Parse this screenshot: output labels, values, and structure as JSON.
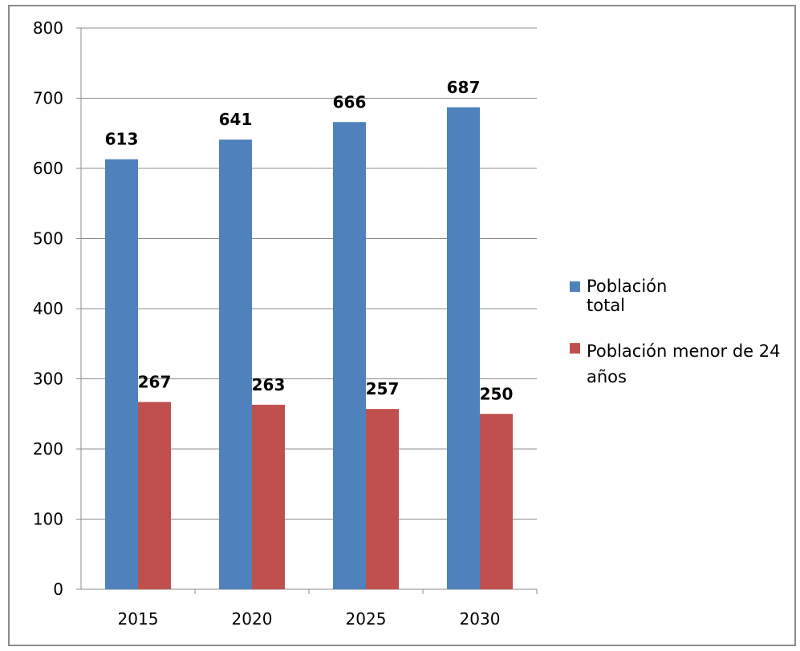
{
  "chart_data": {
    "type": "bar",
    "categories": [
      "2015",
      "2020",
      "2025",
      "2030"
    ],
    "series": [
      {
        "name": "Población total",
        "values": [
          613,
          641,
          666,
          687
        ],
        "color": "#4f81bd"
      },
      {
        "name": "Población menor de 24 años",
        "values": [
          267,
          263,
          257,
          250
        ],
        "color": "#c0504d"
      }
    ],
    "yticks": [
      "0",
      "100",
      "200",
      "300",
      "400",
      "500",
      "600",
      "700",
      "800"
    ],
    "ylim": [
      0,
      800
    ],
    "grid": true,
    "legend_position": "right",
    "data_labels": true
  }
}
